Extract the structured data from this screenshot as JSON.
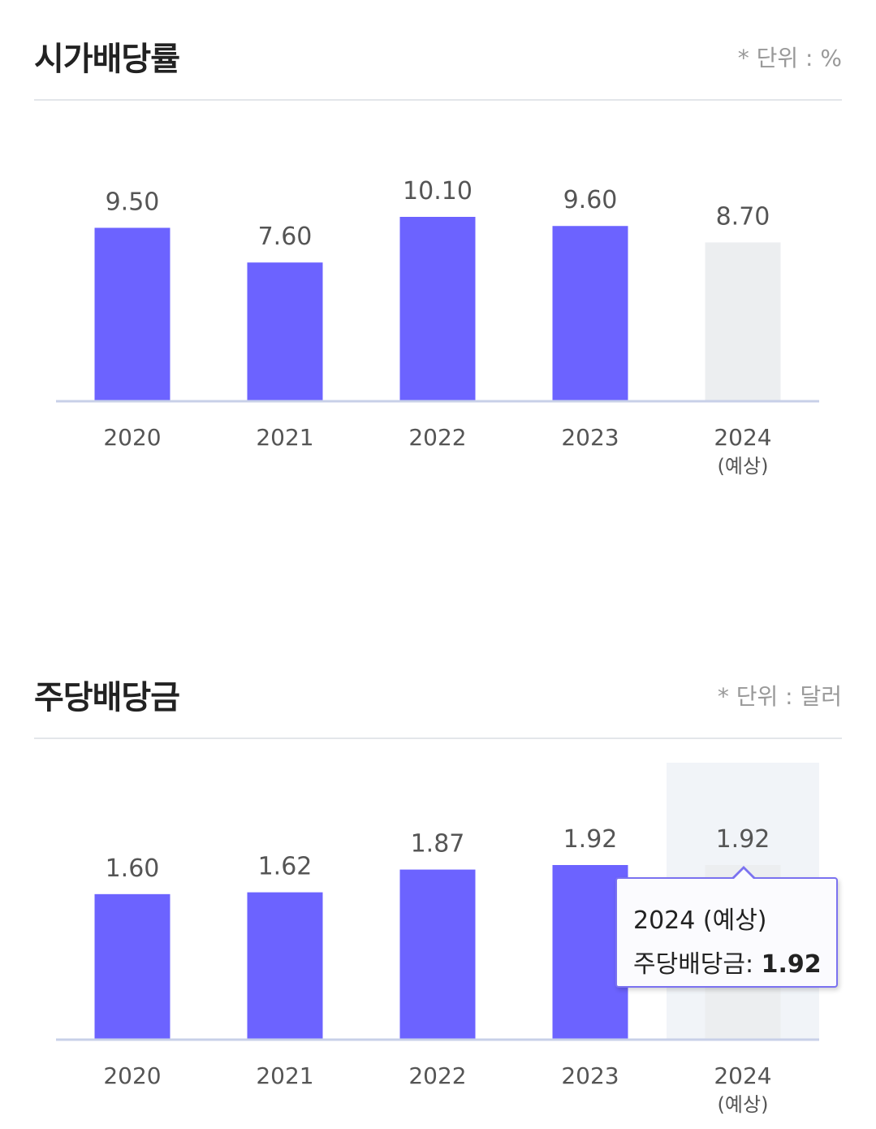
{
  "colors": {
    "bar_actual": "#6c63ff",
    "bar_forecast": "#eceef0",
    "highlight_band": "#f1f4f8",
    "axis": "#c8d0e8"
  },
  "sections": [
    {
      "title": "시가배당률",
      "unit": "* 단위 : %"
    },
    {
      "title": "주당배당금",
      "unit": "* 단위 : 달러"
    }
  ],
  "chart_data": [
    {
      "type": "bar",
      "title": "시가배당률",
      "unit": "%",
      "categories": [
        "2020",
        "2021",
        "2022",
        "2023",
        "2024"
      ],
      "category_sub": [
        "",
        "",
        "",
        "",
        "(예상)"
      ],
      "values": [
        9.5,
        7.6,
        10.1,
        9.6,
        8.7
      ],
      "value_labels": [
        "9.50",
        "7.60",
        "10.10",
        "9.60",
        "8.70"
      ],
      "forecast": [
        false,
        false,
        false,
        false,
        true
      ],
      "ylim": [
        0,
        10.1
      ],
      "grid": false,
      "legend": "none"
    },
    {
      "type": "bar",
      "title": "주당배당금",
      "unit": "달러",
      "categories": [
        "2020",
        "2021",
        "2022",
        "2023",
        "2024"
      ],
      "category_sub": [
        "",
        "",
        "",
        "",
        "(예상)"
      ],
      "values": [
        1.6,
        1.62,
        1.87,
        1.92,
        1.92
      ],
      "value_labels": [
        "1.60",
        "1.62",
        "1.87",
        "1.92",
        "1.92"
      ],
      "forecast": [
        false,
        false,
        false,
        false,
        true
      ],
      "ylim": [
        0,
        1.92
      ],
      "grid": false,
      "legend": "none",
      "highlighted_index": 4
    }
  ],
  "tooltip": {
    "title": "2024 (예상)",
    "series_label": "주당배당금: ",
    "value": "1.92"
  }
}
